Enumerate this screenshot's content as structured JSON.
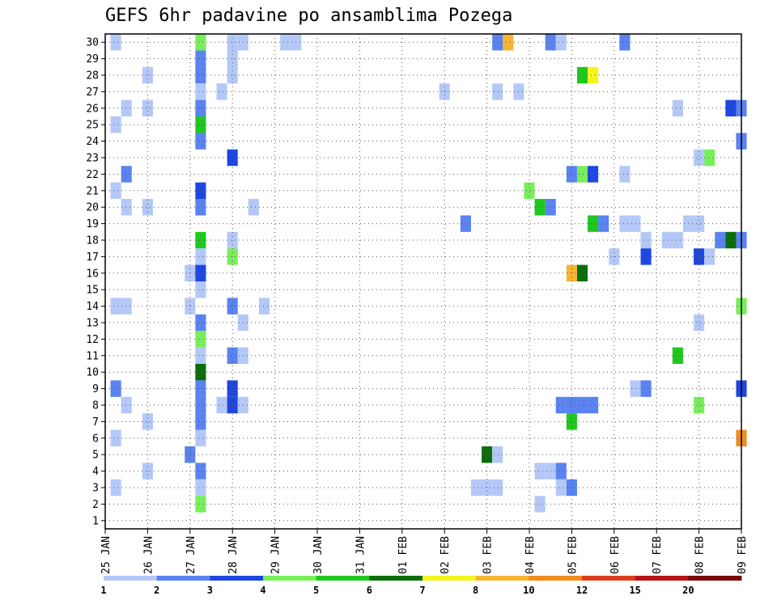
{
  "chart_data": {
    "type": "heatmap",
    "title": "GEFS 6hr padavine po ansamblima Pozega",
    "x_tick_labels": [
      "25 JAN",
      "26 JAN",
      "27 JAN",
      "28 JAN",
      "29 JAN",
      "30 JAN",
      "31 JAN",
      "01 FEB",
      "02 FEB",
      "03 FEB",
      "04 FEB",
      "05 FEB",
      "06 FEB",
      "07 FEB",
      "08 FEB",
      "09 FEB"
    ],
    "y_tick_labels": [
      "1",
      "2",
      "3",
      "4",
      "5",
      "6",
      "7",
      "8",
      "9",
      "10",
      "11",
      "12",
      "13",
      "14",
      "15",
      "16",
      "17",
      "18",
      "19",
      "20",
      "21",
      "22",
      "23",
      "24",
      "25",
      "26",
      "27",
      "28",
      "29",
      "30"
    ],
    "xlim_days": [
      0,
      15
    ],
    "ylim_members": [
      0.5,
      30.5
    ],
    "step_hours": 6,
    "grid": true,
    "colorbar": {
      "labels": [
        "1",
        "2",
        "3",
        "4",
        "5",
        "6",
        "7",
        "8",
        "10",
        "12",
        "15",
        "20"
      ],
      "colors": [
        "#b4c8f8",
        "#5a82f0",
        "#1e46e0",
        "#78ee5a",
        "#1ec81e",
        "#0a6e0a",
        "#f5f51e",
        "#f5b432",
        "#f08c1e",
        "#dc3c1e",
        "#b41414",
        "#780a0a"
      ]
    },
    "cells": [
      {
        "member": 30,
        "day": 0.25,
        "level": 0
      },
      {
        "member": 30,
        "day": 2.25,
        "level": 3
      },
      {
        "member": 30,
        "day": 3.0,
        "level": 0
      },
      {
        "member": 30,
        "day": 3.25,
        "level": 0
      },
      {
        "member": 30,
        "day": 4.25,
        "level": 0
      },
      {
        "member": 30,
        "day": 4.5,
        "level": 0
      },
      {
        "member": 30,
        "day": 9.25,
        "level": 1
      },
      {
        "member": 30,
        "day": 9.5,
        "level": 7
      },
      {
        "member": 30,
        "day": 10.5,
        "level": 1
      },
      {
        "member": 30,
        "day": 10.75,
        "level": 0
      },
      {
        "member": 30,
        "day": 12.25,
        "level": 1
      },
      {
        "member": 29,
        "day": 2.25,
        "level": 1
      },
      {
        "member": 29,
        "day": 3.0,
        "level": 0
      },
      {
        "member": 28,
        "day": 1.0,
        "level": 0
      },
      {
        "member": 28,
        "day": 2.25,
        "level": 1
      },
      {
        "member": 28,
        "day": 3.0,
        "level": 0
      },
      {
        "member": 28,
        "day": 11.25,
        "level": 4
      },
      {
        "member": 28,
        "day": 11.5,
        "level": 6
      },
      {
        "member": 27,
        "day": 2.25,
        "level": 0
      },
      {
        "member": 27,
        "day": 2.75,
        "level": 0
      },
      {
        "member": 27,
        "day": 8.0,
        "level": 0
      },
      {
        "member": 27,
        "day": 9.25,
        "level": 0
      },
      {
        "member": 27,
        "day": 9.75,
        "level": 0
      },
      {
        "member": 26,
        "day": 0.5,
        "level": 0
      },
      {
        "member": 26,
        "day": 1.0,
        "level": 0
      },
      {
        "member": 26,
        "day": 2.25,
        "level": 1
      },
      {
        "member": 26,
        "day": 13.5,
        "level": 0
      },
      {
        "member": 26,
        "day": 14.75,
        "level": 2
      },
      {
        "member": 26,
        "day": 15.0,
        "level": 1
      },
      {
        "member": 25,
        "day": 0.25,
        "level": 0
      },
      {
        "member": 25,
        "day": 2.25,
        "level": 4
      },
      {
        "member": 24,
        "day": 2.25,
        "level": 1
      },
      {
        "member": 24,
        "day": 15.0,
        "level": 1
      },
      {
        "member": 23,
        "day": 3.0,
        "level": 2
      },
      {
        "member": 23,
        "day": 14.0,
        "level": 0
      },
      {
        "member": 23,
        "day": 14.25,
        "level": 3
      },
      {
        "member": 22,
        "day": 0.5,
        "level": 1
      },
      {
        "member": 22,
        "day": 11.0,
        "level": 1
      },
      {
        "member": 22,
        "day": 11.25,
        "level": 3
      },
      {
        "member": 22,
        "day": 11.5,
        "level": 2
      },
      {
        "member": 22,
        "day": 12.25,
        "level": 0
      },
      {
        "member": 21,
        "day": 0.25,
        "level": 0
      },
      {
        "member": 21,
        "day": 2.25,
        "level": 2
      },
      {
        "member": 21,
        "day": 10.0,
        "level": 3
      },
      {
        "member": 20,
        "day": 0.5,
        "level": 0
      },
      {
        "member": 20,
        "day": 1.0,
        "level": 0
      },
      {
        "member": 20,
        "day": 2.25,
        "level": 1
      },
      {
        "member": 20,
        "day": 3.5,
        "level": 0
      },
      {
        "member": 20,
        "day": 10.25,
        "level": 4
      },
      {
        "member": 20,
        "day": 10.5,
        "level": 1
      },
      {
        "member": 19,
        "day": 8.5,
        "level": 1
      },
      {
        "member": 19,
        "day": 11.5,
        "level": 4
      },
      {
        "member": 19,
        "day": 11.75,
        "level": 1
      },
      {
        "member": 19,
        "day": 12.25,
        "level": 0
      },
      {
        "member": 19,
        "day": 12.5,
        "level": 0
      },
      {
        "member": 19,
        "day": 13.75,
        "level": 0
      },
      {
        "member": 19,
        "day": 14.0,
        "level": 0
      },
      {
        "member": 18,
        "day": 2.25,
        "level": 4
      },
      {
        "member": 18,
        "day": 3.0,
        "level": 0
      },
      {
        "member": 18,
        "day": 12.75,
        "level": 0
      },
      {
        "member": 18,
        "day": 13.25,
        "level": 0
      },
      {
        "member": 18,
        "day": 13.5,
        "level": 0
      },
      {
        "member": 18,
        "day": 14.5,
        "level": 1
      },
      {
        "member": 18,
        "day": 14.75,
        "level": 5
      },
      {
        "member": 18,
        "day": 15.0,
        "level": 1
      },
      {
        "member": 17,
        "day": 2.25,
        "level": 0
      },
      {
        "member": 17,
        "day": 3.0,
        "level": 3
      },
      {
        "member": 17,
        "day": 12.0,
        "level": 0
      },
      {
        "member": 17,
        "day": 12.75,
        "level": 2
      },
      {
        "member": 17,
        "day": 14.0,
        "level": 2
      },
      {
        "member": 17,
        "day": 14.25,
        "level": 0
      },
      {
        "member": 16,
        "day": 2.0,
        "level": 0
      },
      {
        "member": 16,
        "day": 2.25,
        "level": 2
      },
      {
        "member": 16,
        "day": 11.0,
        "level": 7
      },
      {
        "member": 16,
        "day": 11.25,
        "level": 5
      },
      {
        "member": 15,
        "day": 2.25,
        "level": 0
      },
      {
        "member": 14,
        "day": 0.25,
        "level": 0
      },
      {
        "member": 14,
        "day": 0.5,
        "level": 0
      },
      {
        "member": 14,
        "day": 2.0,
        "level": 0
      },
      {
        "member": 14,
        "day": 3.0,
        "level": 1
      },
      {
        "member": 14,
        "day": 3.75,
        "level": 0
      },
      {
        "member": 14,
        "day": 15.0,
        "level": 3
      },
      {
        "member": 13,
        "day": 2.25,
        "level": 1
      },
      {
        "member": 13,
        "day": 3.25,
        "level": 0
      },
      {
        "member": 13,
        "day": 14.0,
        "level": 0
      },
      {
        "member": 12,
        "day": 2.25,
        "level": 3
      },
      {
        "member": 11,
        "day": 2.25,
        "level": 0
      },
      {
        "member": 11,
        "day": 3.0,
        "level": 1
      },
      {
        "member": 11,
        "day": 3.25,
        "level": 0
      },
      {
        "member": 11,
        "day": 13.5,
        "level": 4
      },
      {
        "member": 10,
        "day": 2.25,
        "level": 5
      },
      {
        "member": 9,
        "day": 0.25,
        "level": 1
      },
      {
        "member": 9,
        "day": 2.25,
        "level": 1
      },
      {
        "member": 9,
        "day": 3.0,
        "level": 2
      },
      {
        "member": 9,
        "day": 12.5,
        "level": 0
      },
      {
        "member": 9,
        "day": 12.75,
        "level": 1
      },
      {
        "member": 9,
        "day": 15.0,
        "level": 2
      },
      {
        "member": 8,
        "day": 0.5,
        "level": 0
      },
      {
        "member": 8,
        "day": 2.25,
        "level": 1
      },
      {
        "member": 8,
        "day": 2.75,
        "level": 0
      },
      {
        "member": 8,
        "day": 3.0,
        "level": 2
      },
      {
        "member": 8,
        "day": 3.25,
        "level": 0
      },
      {
        "member": 8,
        "day": 10.75,
        "level": 1
      },
      {
        "member": 8,
        "day": 11.0,
        "level": 1
      },
      {
        "member": 8,
        "day": 11.25,
        "level": 1
      },
      {
        "member": 8,
        "day": 11.5,
        "level": 1
      },
      {
        "member": 8,
        "day": 14.0,
        "level": 3
      },
      {
        "member": 7,
        "day": 1.0,
        "level": 0
      },
      {
        "member": 7,
        "day": 2.25,
        "level": 1
      },
      {
        "member": 7,
        "day": 11.0,
        "level": 4
      },
      {
        "member": 6,
        "day": 0.25,
        "level": 0
      },
      {
        "member": 6,
        "day": 2.25,
        "level": 0
      },
      {
        "member": 6,
        "day": 15.0,
        "level": 8
      },
      {
        "member": 5,
        "day": 2.0,
        "level": 1
      },
      {
        "member": 5,
        "day": 9.0,
        "level": 5
      },
      {
        "member": 5,
        "day": 9.25,
        "level": 0
      },
      {
        "member": 4,
        "day": 1.0,
        "level": 0
      },
      {
        "member": 4,
        "day": 2.25,
        "level": 1
      },
      {
        "member": 4,
        "day": 10.25,
        "level": 0
      },
      {
        "member": 4,
        "day": 10.5,
        "level": 0
      },
      {
        "member": 4,
        "day": 10.75,
        "level": 1
      },
      {
        "member": 3,
        "day": 0.25,
        "level": 0
      },
      {
        "member": 3,
        "day": 2.25,
        "level": 0
      },
      {
        "member": 3,
        "day": 8.75,
        "level": 0
      },
      {
        "member": 3,
        "day": 9.0,
        "level": 0
      },
      {
        "member": 3,
        "day": 9.25,
        "level": 0
      },
      {
        "member": 3,
        "day": 10.75,
        "level": 0
      },
      {
        "member": 3,
        "day": 11.0,
        "level": 1
      },
      {
        "member": 2,
        "day": 2.25,
        "level": 3
      },
      {
        "member": 2,
        "day": 10.25,
        "level": 0
      }
    ]
  }
}
